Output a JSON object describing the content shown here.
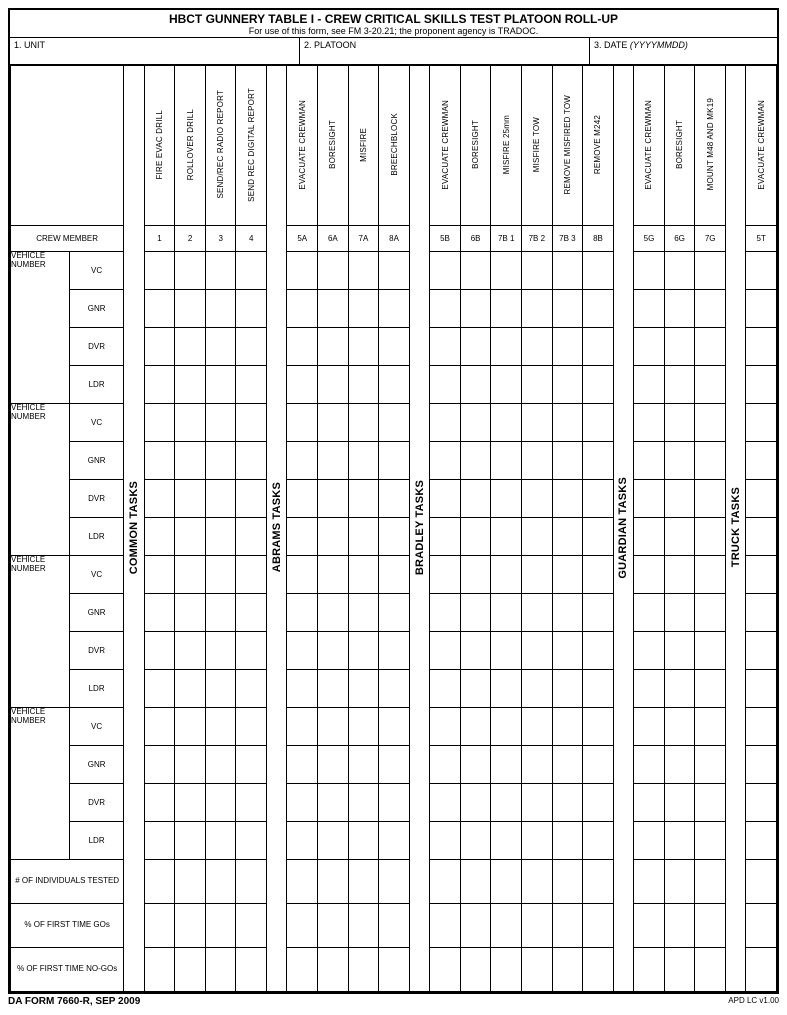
{
  "title": "HBCT GUNNERY TABLE I - CREW CRITICAL SKILLS TEST PLATOON ROLL-UP",
  "subtitle": "For use of this form, see FM 3-20.21; the proponent agency is TRADOC.",
  "meta": {
    "unit_label": "1. UNIT",
    "platoon_label": "2. PLATOON",
    "date_label": "3.  DATE",
    "date_hint": "(YYYYMMDD)"
  },
  "groups": {
    "common": {
      "label": "COMMON TASKS",
      "tasks": [
        {
          "label": "FIRE EVAC DRILL",
          "code": "1"
        },
        {
          "label": "ROLLOVER DRILL",
          "code": "2"
        },
        {
          "label": "SEND/REC RADIO REPORT",
          "code": "3"
        },
        {
          "label": "SEND REC DIGITAL REPORT",
          "code": "4"
        }
      ]
    },
    "abrams": {
      "label": "ABRAMS TASKS",
      "tasks": [
        {
          "label": "EVACUATE CREWMAN",
          "code": "5A"
        },
        {
          "label": "BORESIGHT",
          "code": "6A"
        },
        {
          "label": "MISFIRE",
          "code": "7A"
        },
        {
          "label": "BREECHBLOCK",
          "code": "8A"
        }
      ]
    },
    "bradley": {
      "label": "BRADLEY TASKS",
      "tasks": [
        {
          "label": "EVACUATE CREWMAN",
          "code": "5B"
        },
        {
          "label": "BORESIGHT",
          "code": "6B"
        },
        {
          "label": "MISFIRE 25mm",
          "code": "7B 1"
        },
        {
          "label": "MISFIRE TOW",
          "code": "7B 2"
        },
        {
          "label": "REMOVE MISFIRED TOW",
          "code": "7B 3"
        },
        {
          "label": "REMOVE M242",
          "code": "8B"
        }
      ]
    },
    "guardian": {
      "label": "GUARDIAN TASKS",
      "tasks": [
        {
          "label": "EVACUATE CREWMAN",
          "code": "5G"
        },
        {
          "label": "BORESIGHT",
          "code": "6G"
        },
        {
          "label": "MOUNT M48 AND MK19",
          "code": "7G"
        }
      ]
    },
    "truck": {
      "label": "TRUCK TASKS",
      "tasks": [
        {
          "label": "EVACUATE CREWMAN",
          "code": "5T"
        }
      ]
    }
  },
  "crew_member_label": "CREW MEMBER",
  "vehicle_number_label": "VEHICLE NUMBER",
  "roles": [
    "VC",
    "GNR",
    "DVR",
    "LDR"
  ],
  "summary_rows": [
    "# OF INDIVIDUALS TESTED",
    "% OF FIRST TIME GOs",
    "% OF FIRST TIME NO-GOs"
  ],
  "footer": {
    "left": "DA FORM 7660-R, SEP 2009",
    "right": "APD LC v1.00"
  }
}
